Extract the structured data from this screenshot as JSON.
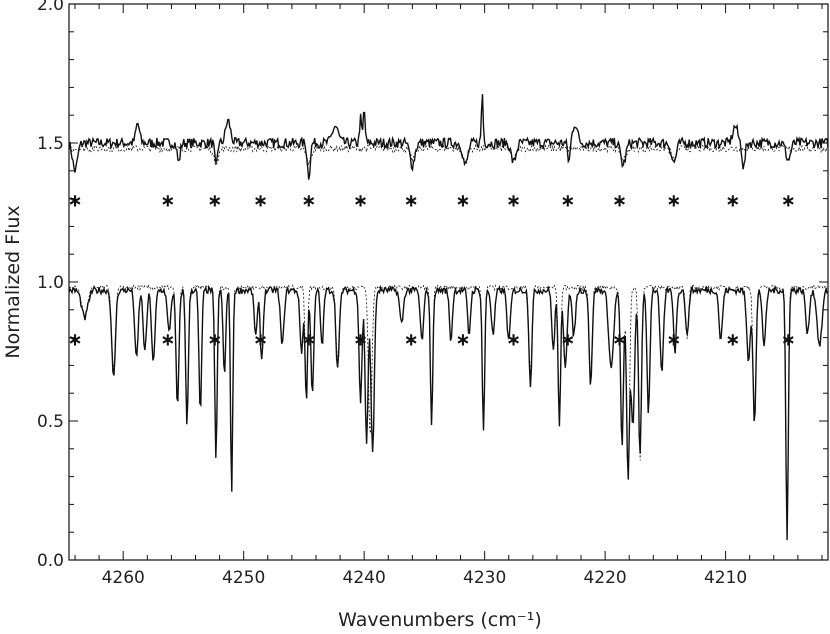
{
  "chart_data": {
    "type": "line",
    "title": "",
    "xlabel": "Wavenumbers (cm⁻¹)",
    "ylabel": "Normalized Flux",
    "xlim": [
      4264.5,
      4201.5
    ],
    "ylim": [
      0.0,
      2.0
    ],
    "x_ticks": [
      4260,
      4250,
      4240,
      4230,
      4220,
      4210
    ],
    "x_tick_labels": [
      "4260",
      "4250",
      "4240",
      "4230",
      "4220",
      "4210"
    ],
    "y_ticks": [
      0.0,
      0.5,
      1.0,
      1.5,
      2.0
    ],
    "y_tick_labels": [
      "0.0",
      "0.5",
      "1.0",
      "1.5",
      "2.0"
    ],
    "grid": false,
    "series": [
      {
        "role": "top-observed",
        "style": "solid",
        "baseline": 1.5,
        "noise": 0.018,
        "features": [
          [
            4258.8,
            0.07,
            0.15
          ],
          [
            4255.4,
            -0.07,
            0.12
          ],
          [
            4252.3,
            -0.09,
            0.1
          ],
          [
            4251.3,
            0.08,
            0.2
          ],
          [
            4244.6,
            -0.12,
            0.12
          ],
          [
            4242.4,
            0.06,
            0.25
          ],
          [
            4240.3,
            0.09,
            0.08
          ],
          [
            4240.0,
            0.12,
            0.08
          ],
          [
            4236.0,
            -0.08,
            0.2
          ],
          [
            4231.6,
            -0.08,
            0.2
          ],
          [
            4230.2,
            0.18,
            0.07
          ],
          [
            4227.6,
            -0.07,
            0.2
          ],
          [
            4222.5,
            0.07,
            0.2
          ],
          [
            4223.0,
            -0.07,
            0.1
          ],
          [
            4218.5,
            -0.08,
            0.2
          ],
          [
            4214.3,
            -0.07,
            0.2
          ],
          [
            4209.2,
            0.06,
            0.2
          ],
          [
            4208.5,
            -0.09,
            0.12
          ],
          [
            4204.8,
            -0.06,
            0.2
          ],
          [
            4264.0,
            -0.1,
            0.2
          ]
        ]
      },
      {
        "role": "top-model",
        "style": "dashed",
        "baseline": 1.48,
        "noise": 0.012,
        "features": [
          [
            4252.3,
            -0.05,
            0.2
          ],
          [
            4244.6,
            -0.05,
            0.2
          ],
          [
            4236.0,
            -0.04,
            0.2
          ],
          [
            4231.6,
            -0.05,
            0.2
          ],
          [
            4227.6,
            -0.04,
            0.2
          ],
          [
            4218.5,
            -0.04,
            0.2
          ],
          [
            4214.3,
            -0.04,
            0.2
          ]
        ]
      },
      {
        "role": "bottom-observed",
        "style": "solid",
        "baseline": 0.97,
        "noise": 0.012,
        "features": [
          [
            4263.2,
            -0.1,
            0.25
          ],
          [
            4260.8,
            -0.32,
            0.15
          ],
          [
            4258.9,
            -0.25,
            0.14
          ],
          [
            4258.2,
            -0.22,
            0.14
          ],
          [
            4257.5,
            -0.26,
            0.14
          ],
          [
            4256.2,
            -0.15,
            0.14
          ],
          [
            4255.5,
            -0.42,
            0.12
          ],
          [
            4254.7,
            -0.48,
            0.11
          ],
          [
            4253.6,
            -0.44,
            0.11
          ],
          [
            4252.3,
            -0.6,
            0.1
          ],
          [
            4251.6,
            -0.3,
            0.11
          ],
          [
            4251.0,
            -0.73,
            0.09
          ],
          [
            4249.0,
            -0.16,
            0.13
          ],
          [
            4248.5,
            -0.25,
            0.12
          ],
          [
            4246.8,
            -0.2,
            0.14
          ],
          [
            4245.2,
            -0.22,
            0.13
          ],
          [
            4244.8,
            -0.4,
            0.1
          ],
          [
            4244.3,
            -0.37,
            0.12
          ],
          [
            4243.5,
            -0.2,
            0.12
          ],
          [
            4242.2,
            -0.28,
            0.14
          ],
          [
            4240.3,
            -0.4,
            0.12
          ],
          [
            4239.8,
            -0.55,
            0.12
          ],
          [
            4239.3,
            -0.58,
            0.14
          ],
          [
            4236.9,
            -0.12,
            0.15
          ],
          [
            4235.2,
            -0.18,
            0.14
          ],
          [
            4234.4,
            -0.48,
            0.1
          ],
          [
            4232.8,
            -0.18,
            0.12
          ],
          [
            4231.3,
            -0.16,
            0.12
          ],
          [
            4230.1,
            -0.5,
            0.1
          ],
          [
            4229.3,
            -0.16,
            0.14
          ],
          [
            4228.0,
            -0.18,
            0.14
          ],
          [
            4226.2,
            -0.34,
            0.12
          ],
          [
            4224.3,
            -0.22,
            0.12
          ],
          [
            4223.8,
            -0.5,
            0.1
          ],
          [
            4223.3,
            -0.27,
            0.14
          ],
          [
            4222.6,
            -0.16,
            0.14
          ],
          [
            4221.2,
            -0.35,
            0.12
          ],
          [
            4219.5,
            -0.28,
            0.2
          ],
          [
            4218.6,
            -0.56,
            0.12
          ],
          [
            4218.1,
            -0.68,
            0.12
          ],
          [
            4217.7,
            -0.5,
            0.14
          ],
          [
            4217.1,
            -0.6,
            0.12
          ],
          [
            4216.4,
            -0.44,
            0.12
          ],
          [
            4215.3,
            -0.3,
            0.14
          ],
          [
            4214.2,
            -0.22,
            0.12
          ],
          [
            4213.2,
            -0.17,
            0.12
          ],
          [
            4210.4,
            -0.18,
            0.14
          ],
          [
            4208.1,
            -0.25,
            0.15
          ],
          [
            4207.6,
            -0.48,
            0.12
          ],
          [
            4206.8,
            -0.2,
            0.14
          ],
          [
            4204.9,
            -0.9,
            0.1
          ],
          [
            4203.2,
            -0.16,
            0.14
          ],
          [
            4202.2,
            -0.2,
            0.2
          ]
        ]
      },
      {
        "role": "bottom-model",
        "style": "dashed",
        "baseline": 0.98,
        "noise": 0.008,
        "features": [
          [
            4263.2,
            -0.1,
            0.25
          ],
          [
            4260.8,
            -0.3,
            0.15
          ],
          [
            4255.5,
            -0.4,
            0.12
          ],
          [
            4254.7,
            -0.46,
            0.11
          ],
          [
            4252.3,
            -0.58,
            0.1
          ],
          [
            4251.0,
            -0.7,
            0.09
          ],
          [
            4244.8,
            -0.38,
            0.1
          ],
          [
            4242.2,
            -0.26,
            0.14
          ],
          [
            4239.5,
            -0.54,
            0.14
          ],
          [
            4234.4,
            -0.46,
            0.1
          ],
          [
            4230.1,
            -0.52,
            0.1
          ],
          [
            4226.2,
            -0.32,
            0.12
          ],
          [
            4223.8,
            -0.48,
            0.1
          ],
          [
            4221.2,
            -0.33,
            0.12
          ],
          [
            4218.6,
            -0.55,
            0.12
          ],
          [
            4218.1,
            -0.7,
            0.12
          ],
          [
            4217.1,
            -0.62,
            0.12
          ],
          [
            4213.2,
            -0.18,
            0.12
          ],
          [
            4207.6,
            -0.5,
            0.12
          ],
          [
            4204.9,
            -0.88,
            0.1
          ]
        ]
      }
    ],
    "markers": [
      {
        "row": "upper",
        "symbol": "∗",
        "y": 1.3,
        "x": [
          4264.0,
          4256.3,
          4252.4,
          4248.6,
          4244.6,
          4240.3,
          4236.1,
          4231.8,
          4227.6,
          4223.1,
          4218.8,
          4214.3,
          4209.4,
          4204.8
        ]
      },
      {
        "row": "lower",
        "symbol": "∗",
        "y": 0.8,
        "x": [
          4264.0,
          4256.3,
          4252.4,
          4248.6,
          4244.6,
          4240.3,
          4236.1,
          4231.8,
          4227.6,
          4223.1,
          4218.8,
          4214.3,
          4209.4,
          4204.8
        ]
      }
    ]
  }
}
